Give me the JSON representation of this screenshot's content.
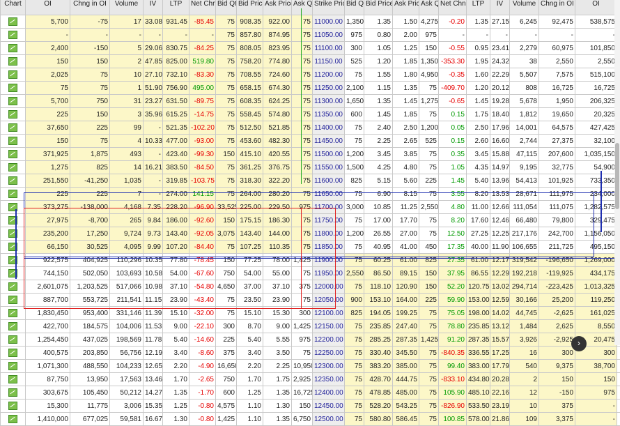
{
  "headers": [
    "Chart",
    "OI",
    "Chng in OI",
    "Volume",
    "IV",
    "LTP",
    "Net Chng",
    "Bid Qty",
    "Bid Price",
    "Ask Price",
    "Ask Qty",
    "Strike Price",
    "Bid Qty",
    "Bid Price",
    "Ask Price",
    "Ask Qty",
    "Net Chng",
    "LTP",
    "IV",
    "Volume",
    "Chng in OI",
    "OI",
    "Chart"
  ],
  "rows": [
    {
      "c": [
        "5,700",
        "-75",
        "17",
        "33.08",
        "931.45",
        "-85.45",
        "75",
        "908.35",
        "922.00",
        "75"
      ],
      "s": "11000.00",
      "p": [
        "1,350",
        "1.35",
        "1.50",
        "4,275",
        "-0.20",
        "1.35",
        "27.15",
        "6,245",
        "92,475",
        "538,575"
      ],
      "m": "itm"
    },
    {
      "c": [
        "-",
        "-",
        "-",
        "-",
        "-",
        "-",
        "75",
        "857.80",
        "874.95",
        "75"
      ],
      "s": "11050.00",
      "p": [
        "975",
        "0.80",
        "2.00",
        "975",
        "-",
        "-",
        "-",
        "-",
        "-",
        "-"
      ],
      "m": "itm"
    },
    {
      "c": [
        "2,400",
        "-150",
        "5",
        "29.06",
        "830.75",
        "-84.25",
        "75",
        "808.05",
        "823.95",
        "75"
      ],
      "s": "11100.00",
      "p": [
        "300",
        "1.05",
        "1.25",
        "150",
        "-0.55",
        "0.95",
        "23.41",
        "2,279",
        "60,975",
        "101,850"
      ],
      "m": "itm"
    },
    {
      "c": [
        "150",
        "150",
        "2",
        "47.85",
        "825.00",
        "519.80",
        "75",
        "758.20",
        "774.80",
        "75"
      ],
      "s": "11150.00",
      "p": [
        "525",
        "1.20",
        "1.85",
        "1,350",
        "-353.30",
        "1.95",
        "24.32",
        "38",
        "2,550",
        "2,550"
      ],
      "m": "itm"
    },
    {
      "c": [
        "2,025",
        "75",
        "10",
        "27.10",
        "732.10",
        "-83.30",
        "75",
        "708.55",
        "724.60",
        "75"
      ],
      "s": "11200.00",
      "p": [
        "75",
        "1.55",
        "1.80",
        "4,950",
        "-0.35",
        "1.60",
        "22.29",
        "5,507",
        "7,575",
        "515,100"
      ],
      "m": "itm"
    },
    {
      "c": [
        "75",
        "75",
        "1",
        "51.90",
        "756.90",
        "495.00",
        "75",
        "658.15",
        "674.30",
        "75"
      ],
      "s": "11250.00",
      "p": [
        "2,100",
        "1.15",
        "1.35",
        "75",
        "-409.70",
        "1.20",
        "20.12",
        "808",
        "16,725",
        "16,725"
      ],
      "m": "itm"
    },
    {
      "c": [
        "5,700",
        "750",
        "31",
        "23.27",
        "631.50",
        "-89.75",
        "75",
        "608.35",
        "624.25",
        "75"
      ],
      "s": "11300.00",
      "p": [
        "1,650",
        "1.35",
        "1.45",
        "1,275",
        "-0.65",
        "1.45",
        "19.28",
        "5,678",
        "1,950",
        "206,325"
      ],
      "m": "itm"
    },
    {
      "c": [
        "225",
        "150",
        "3",
        "35.96",
        "615.25",
        "-14.75",
        "75",
        "558.45",
        "574.80",
        "75"
      ],
      "s": "11350.00",
      "p": [
        "600",
        "1.45",
        "1.85",
        "75",
        "0.15",
        "1.75",
        "18.40",
        "1,812",
        "19,650",
        "20,325"
      ],
      "m": "itm"
    },
    {
      "c": [
        "37,650",
        "225",
        "99",
        "-",
        "521.35",
        "-102.20",
        "75",
        "512.50",
        "521.85",
        "75"
      ],
      "s": "11400.00",
      "p": [
        "75",
        "2.40",
        "2.50",
        "1,200",
        "0.05",
        "2.50",
        "17.96",
        "14,001",
        "64,575",
        "427,425"
      ],
      "m": "itm"
    },
    {
      "c": [
        "150",
        "75",
        "4",
        "10.33",
        "477.00",
        "-93.00",
        "75",
        "453.60",
        "482.30",
        "75"
      ],
      "s": "11450.00",
      "p": [
        "75",
        "2.25",
        "2.65",
        "525",
        "0.15",
        "2.60",
        "16.60",
        "2,744",
        "27,375",
        "32,100"
      ],
      "m": "itm"
    },
    {
      "c": [
        "371,925",
        "1,875",
        "493",
        "-",
        "423.40",
        "-99.30",
        "150",
        "415.10",
        "420.55",
        "75"
      ],
      "s": "11500.00",
      "p": [
        "1,200",
        "3.45",
        "3.85",
        "75",
        "0.35",
        "3.45",
        "15.88",
        "47,115",
        "207,600",
        "1,035,150"
      ],
      "m": "itm"
    },
    {
      "c": [
        "1,275",
        "825",
        "14",
        "16.21",
        "383.50",
        "-84.50",
        "75",
        "361.25",
        "376.75",
        "75"
      ],
      "s": "11550.00",
      "p": [
        "1,500",
        "4.25",
        "4.80",
        "75",
        "1.05",
        "4.35",
        "14.97",
        "9,195",
        "32,775",
        "54,900"
      ],
      "m": "itm"
    },
    {
      "c": [
        "251,550",
        "-41,250",
        "1,035",
        "-",
        "319.85",
        "-103.75",
        "75",
        "318.30",
        "322.20",
        "75"
      ],
      "s": "11600.00",
      "p": [
        "825",
        "5.15",
        "5.60",
        "225",
        "1.45",
        "5.40",
        "13.96",
        "54,413",
        "101,925",
        "733,350"
      ],
      "m": "itm"
    },
    {
      "c": [
        "225",
        "225",
        "7",
        "-",
        "274.00",
        "141.15",
        "75",
        "264.00",
        "280.20",
        "75"
      ],
      "s": "11650.00",
      "p": [
        "75",
        "6.90",
        "8.15",
        "75",
        "3.55",
        "8.20",
        "13.53",
        "28,671",
        "111,975",
        "234,000"
      ],
      "m": "itm"
    },
    {
      "c": [
        "373,275",
        "-138,000",
        "4,168",
        "7.35",
        "228.20",
        "-96.90",
        "33,525",
        "225.00",
        "229.50",
        "975"
      ],
      "s": "11700.00",
      "p": [
        "3,000",
        "10.85",
        "11.25",
        "2,550",
        "4.80",
        "11.00",
        "12.66",
        "111,054",
        "111,075",
        "1,282,575"
      ],
      "m": "itm"
    },
    {
      "c": [
        "27,975",
        "-8,700",
        "265",
        "9.84",
        "186.00",
        "-92.60",
        "150",
        "175.15",
        "186.30",
        "75"
      ],
      "s": "11750.00",
      "p": [
        "75",
        "17.00",
        "17.70",
        "75",
        "8.20",
        "17.60",
        "12.46",
        "66,480",
        "79,800",
        "329,475"
      ],
      "m": "itm"
    },
    {
      "c": [
        "235,200",
        "17,250",
        "9,724",
        "9.73",
        "143.40",
        "-92.05",
        "3,075",
        "143.40",
        "144.00",
        "75"
      ],
      "s": "11800.00",
      "p": [
        "1,200",
        "26.55",
        "27.00",
        "75",
        "12.50",
        "27.25",
        "12.25",
        "217,176",
        "242,700",
        "1,156,050"
      ],
      "m": "itm"
    },
    {
      "c": [
        "66,150",
        "30,525",
        "4,095",
        "9.99",
        "107.20",
        "-84.40",
        "75",
        "107.25",
        "110.35",
        "75"
      ],
      "s": "11850.00",
      "p": [
        "75",
        "40.95",
        "41.00",
        "450",
        "17.35",
        "40.00",
        "11.90",
        "106,655",
        "211,725",
        "495,150"
      ],
      "m": "itm"
    },
    {
      "c": [
        "922,575",
        "404,925",
        "110,296",
        "10.35",
        "77.80",
        "-78.45",
        "150",
        "77.25",
        "78.00",
        "1,425"
      ],
      "s": "11900.00",
      "p": [
        "75",
        "60.25",
        "61.00",
        "825",
        "27.35",
        "61.00",
        "12.17",
        "319,542",
        "-196,650",
        "1,269,000"
      ],
      "m": "otm"
    },
    {
      "c": [
        "744,150",
        "502,050",
        "103,693",
        "10.58",
        "54.00",
        "-67.60",
        "750",
        "54.00",
        "55.00",
        "75"
      ],
      "s": "11950.00",
      "p": [
        "2,550",
        "86.50",
        "89.15",
        "150",
        "37.95",
        "86.55",
        "12.29",
        "192,218",
        "-119,925",
        "434,175"
      ],
      "m": "otm"
    },
    {
      "c": [
        "2,601,075",
        "1,203,525",
        "517,066",
        "10.98",
        "37.10",
        "-54.80",
        "4,650",
        "37.00",
        "37.10",
        "375"
      ],
      "s": "12000.00",
      "p": [
        "75",
        "118.10",
        "120.90",
        "150",
        "52.20",
        "120.75",
        "13.02",
        "294,714",
        "-223,425",
        "1,013,325"
      ],
      "m": "otm"
    },
    {
      "c": [
        "887,700",
        "553,725",
        "211,541",
        "11.15",
        "23.90",
        "-43.40",
        "75",
        "23.50",
        "23.90",
        "75"
      ],
      "s": "12050.00",
      "p": [
        "900",
        "153.10",
        "164.00",
        "225",
        "59.90",
        "153.00",
        "12.59",
        "30,166",
        "25,200",
        "119,250"
      ],
      "m": "otm"
    },
    {
      "c": [
        "1,830,450",
        "953,400",
        "331,146",
        "11.39",
        "15.10",
        "-32.00",
        "75",
        "15.10",
        "15.30",
        "300"
      ],
      "s": "12100.00",
      "p": [
        "825",
        "194.05",
        "199.25",
        "75",
        "75.05",
        "198.00",
        "14.02",
        "44,745",
        "-2,625",
        "161,025"
      ],
      "m": "otm"
    },
    {
      "c": [
        "422,700",
        "184,575",
        "104,006",
        "11.53",
        "9.00",
        "-22.10",
        "300",
        "8.70",
        "9.00",
        "1,425"
      ],
      "s": "12150.00",
      "p": [
        "75",
        "235.85",
        "247.40",
        "75",
        "78.80",
        "235.85",
        "13.12",
        "1,484",
        "2,625",
        "8,550"
      ],
      "m": "otm"
    },
    {
      "c": [
        "1,254,450",
        "437,025",
        "198,569",
        "11.78",
        "5.40",
        "-14.60",
        "225",
        "5.40",
        "5.55",
        "975"
      ],
      "s": "12200.00",
      "p": [
        "75",
        "285.25",
        "287.35",
        "1,425",
        "91.20",
        "287.35",
        "15.57",
        "3,926",
        "-2,925",
        "20,475"
      ],
      "m": "otm"
    },
    {
      "c": [
        "400,575",
        "203,850",
        "56,756",
        "12.19",
        "3.40",
        "-8.60",
        "375",
        "3.40",
        "3.50",
        "75"
      ],
      "s": "12250.00",
      "p": [
        "75",
        "330.40",
        "345.50",
        "75",
        "-840.35",
        "336.55",
        "17.25",
        "16",
        "300",
        "300"
      ],
      "m": "otm"
    },
    {
      "c": [
        "1,071,300",
        "488,550",
        "104,233",
        "12.65",
        "2.20",
        "-4.90",
        "16,650",
        "2.20",
        "2.25",
        "10,950"
      ],
      "s": "12300.00",
      "p": [
        "75",
        "383.20",
        "385.00",
        "75",
        "99.40",
        "383.00",
        "17.79",
        "540",
        "9,375",
        "38,700"
      ],
      "m": "otm"
    },
    {
      "c": [
        "87,750",
        "13,950",
        "17,563",
        "13.46",
        "1.70",
        "-2.65",
        "750",
        "1.70",
        "1.75",
        "2,925"
      ],
      "s": "12350.00",
      "p": [
        "75",
        "428.70",
        "444.75",
        "75",
        "-833.10",
        "434.80",
        "20.28",
        "2",
        "150",
        "150"
      ],
      "m": "otm"
    },
    {
      "c": [
        "303,675",
        "105,450",
        "50,212",
        "14.27",
        "1.35",
        "-1.70",
        "600",
        "1.25",
        "1.35",
        "16,725"
      ],
      "s": "12400.00",
      "p": [
        "75",
        "478.85",
        "485.00",
        "75",
        "105.90",
        "485.10",
        "22.16",
        "12",
        "-150",
        "975"
      ],
      "m": "otm"
    },
    {
      "c": [
        "15,300",
        "11,775",
        "3,006",
        "15.35",
        "1.25",
        "-0.80",
        "4,575",
        "1.10",
        "1.30",
        "150"
      ],
      "s": "12450.00",
      "p": [
        "75",
        "528.20",
        "543.25",
        "75",
        "-826.90",
        "533.50",
        "23.19",
        "10",
        "375",
        "-"
      ],
      "m": "otm"
    },
    {
      "c": [
        "1,410,000",
        "677,025",
        "59,581",
        "16.67",
        "1.30",
        "-0.80",
        "1,425",
        "1.10",
        "1.35",
        "6,750"
      ],
      "s": "12500.00",
      "p": [
        "75",
        "580.80",
        "586.45",
        "75",
        "100.85",
        "578.00",
        "21.86",
        "109",
        "3,375",
        "-"
      ],
      "m": "otm"
    }
  ],
  "colors": {
    "itm": "#fcf7c8",
    "neg": "#e60000",
    "pos": "#009900",
    "box_blue": "#1f2fb0",
    "box_red": "#e02020",
    "box_green": "#22aa22"
  },
  "icons": {
    "chart": "chart-icon",
    "fab": "expand-icon"
  }
}
